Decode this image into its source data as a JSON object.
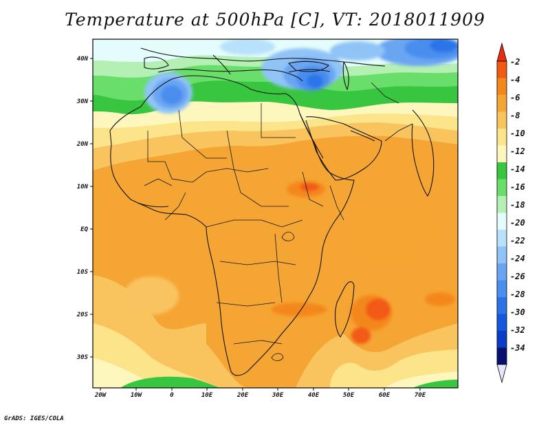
{
  "title": "Temperature at 500hPa [C], VT: 2018011909",
  "footer": "GrADS: IGES/COLA",
  "colors": {
    "b34": "#08106e",
    "b32": "#0b3cc8",
    "b30": "#1358de",
    "b28": "#2a74e8",
    "b26": "#4a8eef",
    "b24": "#6aa5f2",
    "b22": "#90c4f7",
    "b20": "#b8e2fb",
    "b18": "#e4fcfc",
    "b16": "#b4f0b4",
    "b14": "#6ade6a",
    "b12": "#38c640",
    "b10": "#fdf7bd",
    "b8": "#fce48a",
    "b6": "#f9c35e",
    "b4": "#f5a533",
    "b2": "#f4871c",
    "b0": "#f25a14",
    "over": "#e82e0e",
    "under": "#e6e6fc"
  },
  "chart_data": {
    "type": "heatmap",
    "variable": "Temperature at 500hPa [C]",
    "valid_time": "2018011909",
    "lon_range": [
      -23,
      80
    ],
    "lat_range": [
      -37,
      45
    ],
    "x_ticks": [
      "20W",
      "10W",
      "0",
      "10E",
      "20E",
      "30E",
      "40E",
      "50E",
      "60E",
      "70E"
    ],
    "x_tick_values": [
      -20,
      -10,
      0,
      10,
      20,
      30,
      40,
      50,
      60,
      70
    ],
    "y_ticks": [
      "40N",
      "30N",
      "20N",
      "10N",
      "EQ",
      "10S",
      "20S",
      "30S"
    ],
    "y_tick_values": [
      40,
      30,
      20,
      10,
      0,
      -10,
      -20,
      -30
    ],
    "colorbar": {
      "labels": [
        "-2",
        "-4",
        "-6",
        "-8",
        "-10",
        "-12",
        "-14",
        "-16",
        "-18",
        "-20",
        "-22",
        "-24",
        "-26",
        "-28",
        "-30",
        "-32",
        "-34"
      ],
      "levels": [
        -2,
        -4,
        -6,
        -8,
        -10,
        -12,
        -14,
        -16,
        -18,
        -20,
        -22,
        -24,
        -26,
        -28,
        -30,
        -32,
        -34
      ],
      "colors": [
        "#f25a14",
        "#f4871c",
        "#f5a533",
        "#f9c35e",
        "#fce48a",
        "#fdf7bd",
        "#38c640",
        "#6ade6a",
        "#b4f0b4",
        "#e4fcfc",
        "#b8e2fb",
        "#90c4f7",
        "#6aa5f2",
        "#4a8eef",
        "#2a74e8",
        "#1358de",
        "#0b3cc8",
        "#08106e"
      ],
      "over_color": "#e82e0e",
      "under_color": "#e6e6fc",
      "top_arrow_color": "#e82e0e",
      "bottom_arrow_color": "#e6e6fc"
    }
  }
}
